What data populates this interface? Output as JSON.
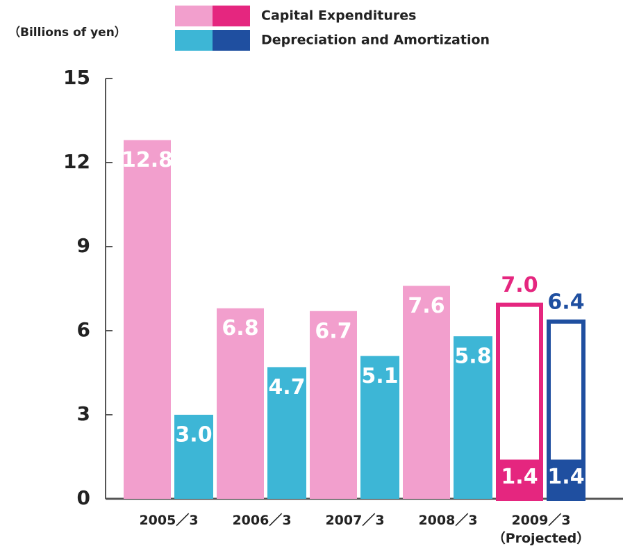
{
  "chart_data": {
    "type": "bar",
    "y_label": "（Billions of yen）",
    "categories": [
      "2005／3",
      "2006／3",
      "2007／3",
      "2008／3",
      "2009／3\n（Projected）"
    ],
    "projected": [
      false,
      false,
      false,
      false,
      true
    ],
    "series": [
      {
        "name": "Capital Expenditures",
        "color": "#f29fcd",
        "projected_color": "#e5267f",
        "values": [
          12.8,
          6.8,
          6.7,
          7.6,
          7.0
        ],
        "value_labels": [
          "12.8",
          "6.8",
          "6.7",
          "7.6",
          "7.0"
        ],
        "partial_values": [
          null,
          null,
          null,
          null,
          1.4
        ]
      },
      {
        "name": "Depreciation and Amortization",
        "color": "#3db6d6",
        "projected_color": "#1f4fa0",
        "values": [
          3.0,
          4.7,
          5.1,
          5.8,
          6.4
        ],
        "value_labels": [
          "3.0",
          "4.7",
          "5.1",
          "5.8",
          "6.4"
        ],
        "partial_values": [
          null,
          null,
          null,
          null,
          1.4
        ]
      }
    ],
    "ylim": [
      0,
      15
    ],
    "yticks": [
      0,
      3,
      6,
      9,
      12,
      15
    ],
    "grid": false
  }
}
